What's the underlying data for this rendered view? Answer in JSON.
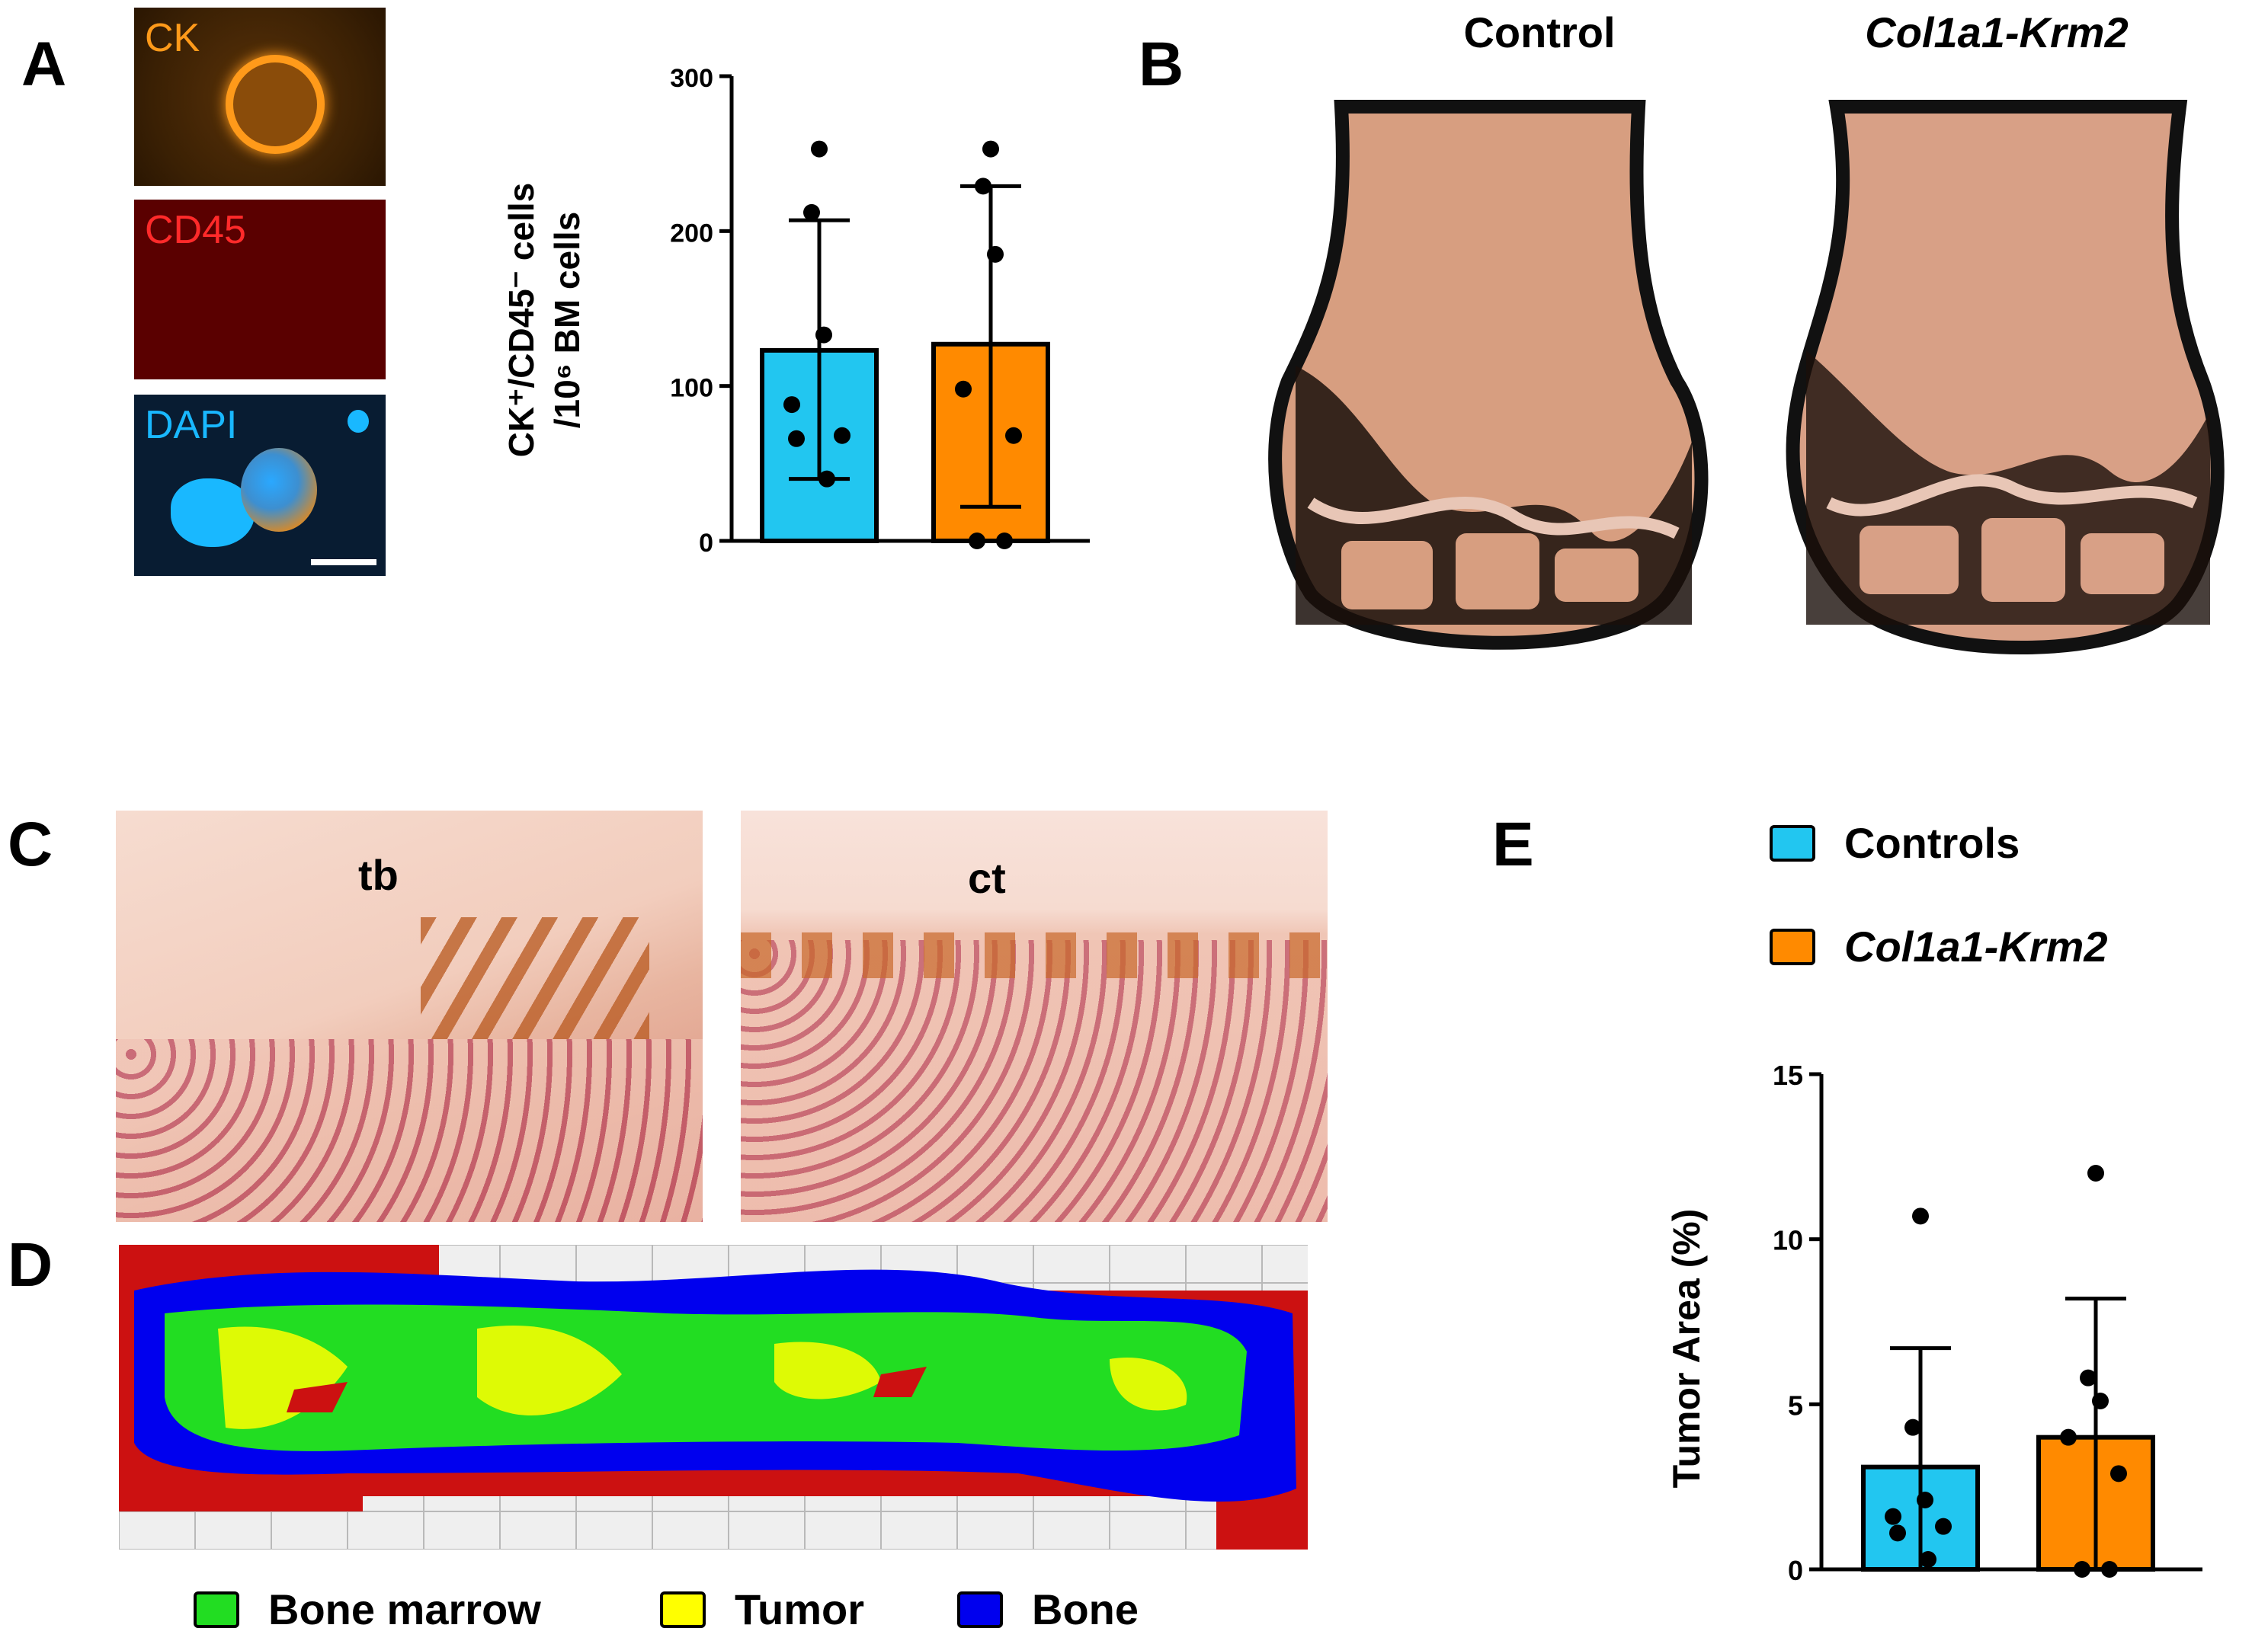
{
  "panels": {
    "A": "A",
    "B": "B",
    "C": "C",
    "D": "D",
    "E": "E"
  },
  "panelA": {
    "image_labels": [
      "CK",
      "CD45",
      "DAPI"
    ],
    "colors": {
      "ck": "#ff9a1a",
      "cd45": "#ff1a1a",
      "dapi": "#19b8ff"
    }
  },
  "panelB": {
    "titles": [
      "Control",
      "Col1a1-Krm2"
    ]
  },
  "panelC": {
    "labels": [
      "tb",
      "ct"
    ]
  },
  "panelD": {
    "legend": [
      {
        "label": "Bone marrow",
        "color": "#22dd22"
      },
      {
        "label": "Tumor",
        "color": "#ffff00"
      },
      {
        "label": "Bone",
        "color": "#0000ee"
      }
    ],
    "map_colors": {
      "background": "#cc1111",
      "grid": "#efefef"
    }
  },
  "panelE_legend": [
    {
      "label": "Controls",
      "color": "#22c6f0"
    },
    {
      "label": "Col1a1-Krm2",
      "color": "#ff8a00"
    }
  ],
  "chart_data": [
    {
      "type": "bar",
      "ylabel_line1": "CK⁺/CD45⁻ cells",
      "ylabel_line2": "/10⁶ BM cells",
      "ylim": [
        0,
        300
      ],
      "yticks": [
        "0",
        "100",
        "200",
        "300"
      ],
      "categories": [
        "Control",
        "Col1a1-Krm2"
      ],
      "colors": [
        "#22c6f0",
        "#ff8a00"
      ],
      "values": [
        123,
        127
      ],
      "error": [
        [
          40,
          207
        ],
        [
          22,
          229
        ]
      ],
      "points": [
        [
          253,
          212,
          133,
          88,
          68,
          66,
          40
        ],
        [
          253,
          229,
          185,
          98,
          68,
          0,
          0
        ]
      ]
    },
    {
      "type": "bar",
      "ylabel": "Tumor Area (%)",
      "ylim": [
        0,
        15
      ],
      "yticks": [
        "0",
        "5",
        "10",
        "15"
      ],
      "categories": [
        "Controls",
        "Col1a1-Krm2"
      ],
      "colors": [
        "#22c6f0",
        "#ff8a00"
      ],
      "values": [
        3.1,
        4.0
      ],
      "error": [
        [
          0,
          6.7
        ],
        [
          0,
          8.2
        ]
      ],
      "points": [
        [
          10.7,
          4.3,
          2.1,
          1.6,
          1.3,
          1.1,
          0.3
        ],
        [
          12.0,
          5.8,
          5.1,
          4.0,
          2.9,
          0.0,
          0.0
        ]
      ]
    }
  ]
}
